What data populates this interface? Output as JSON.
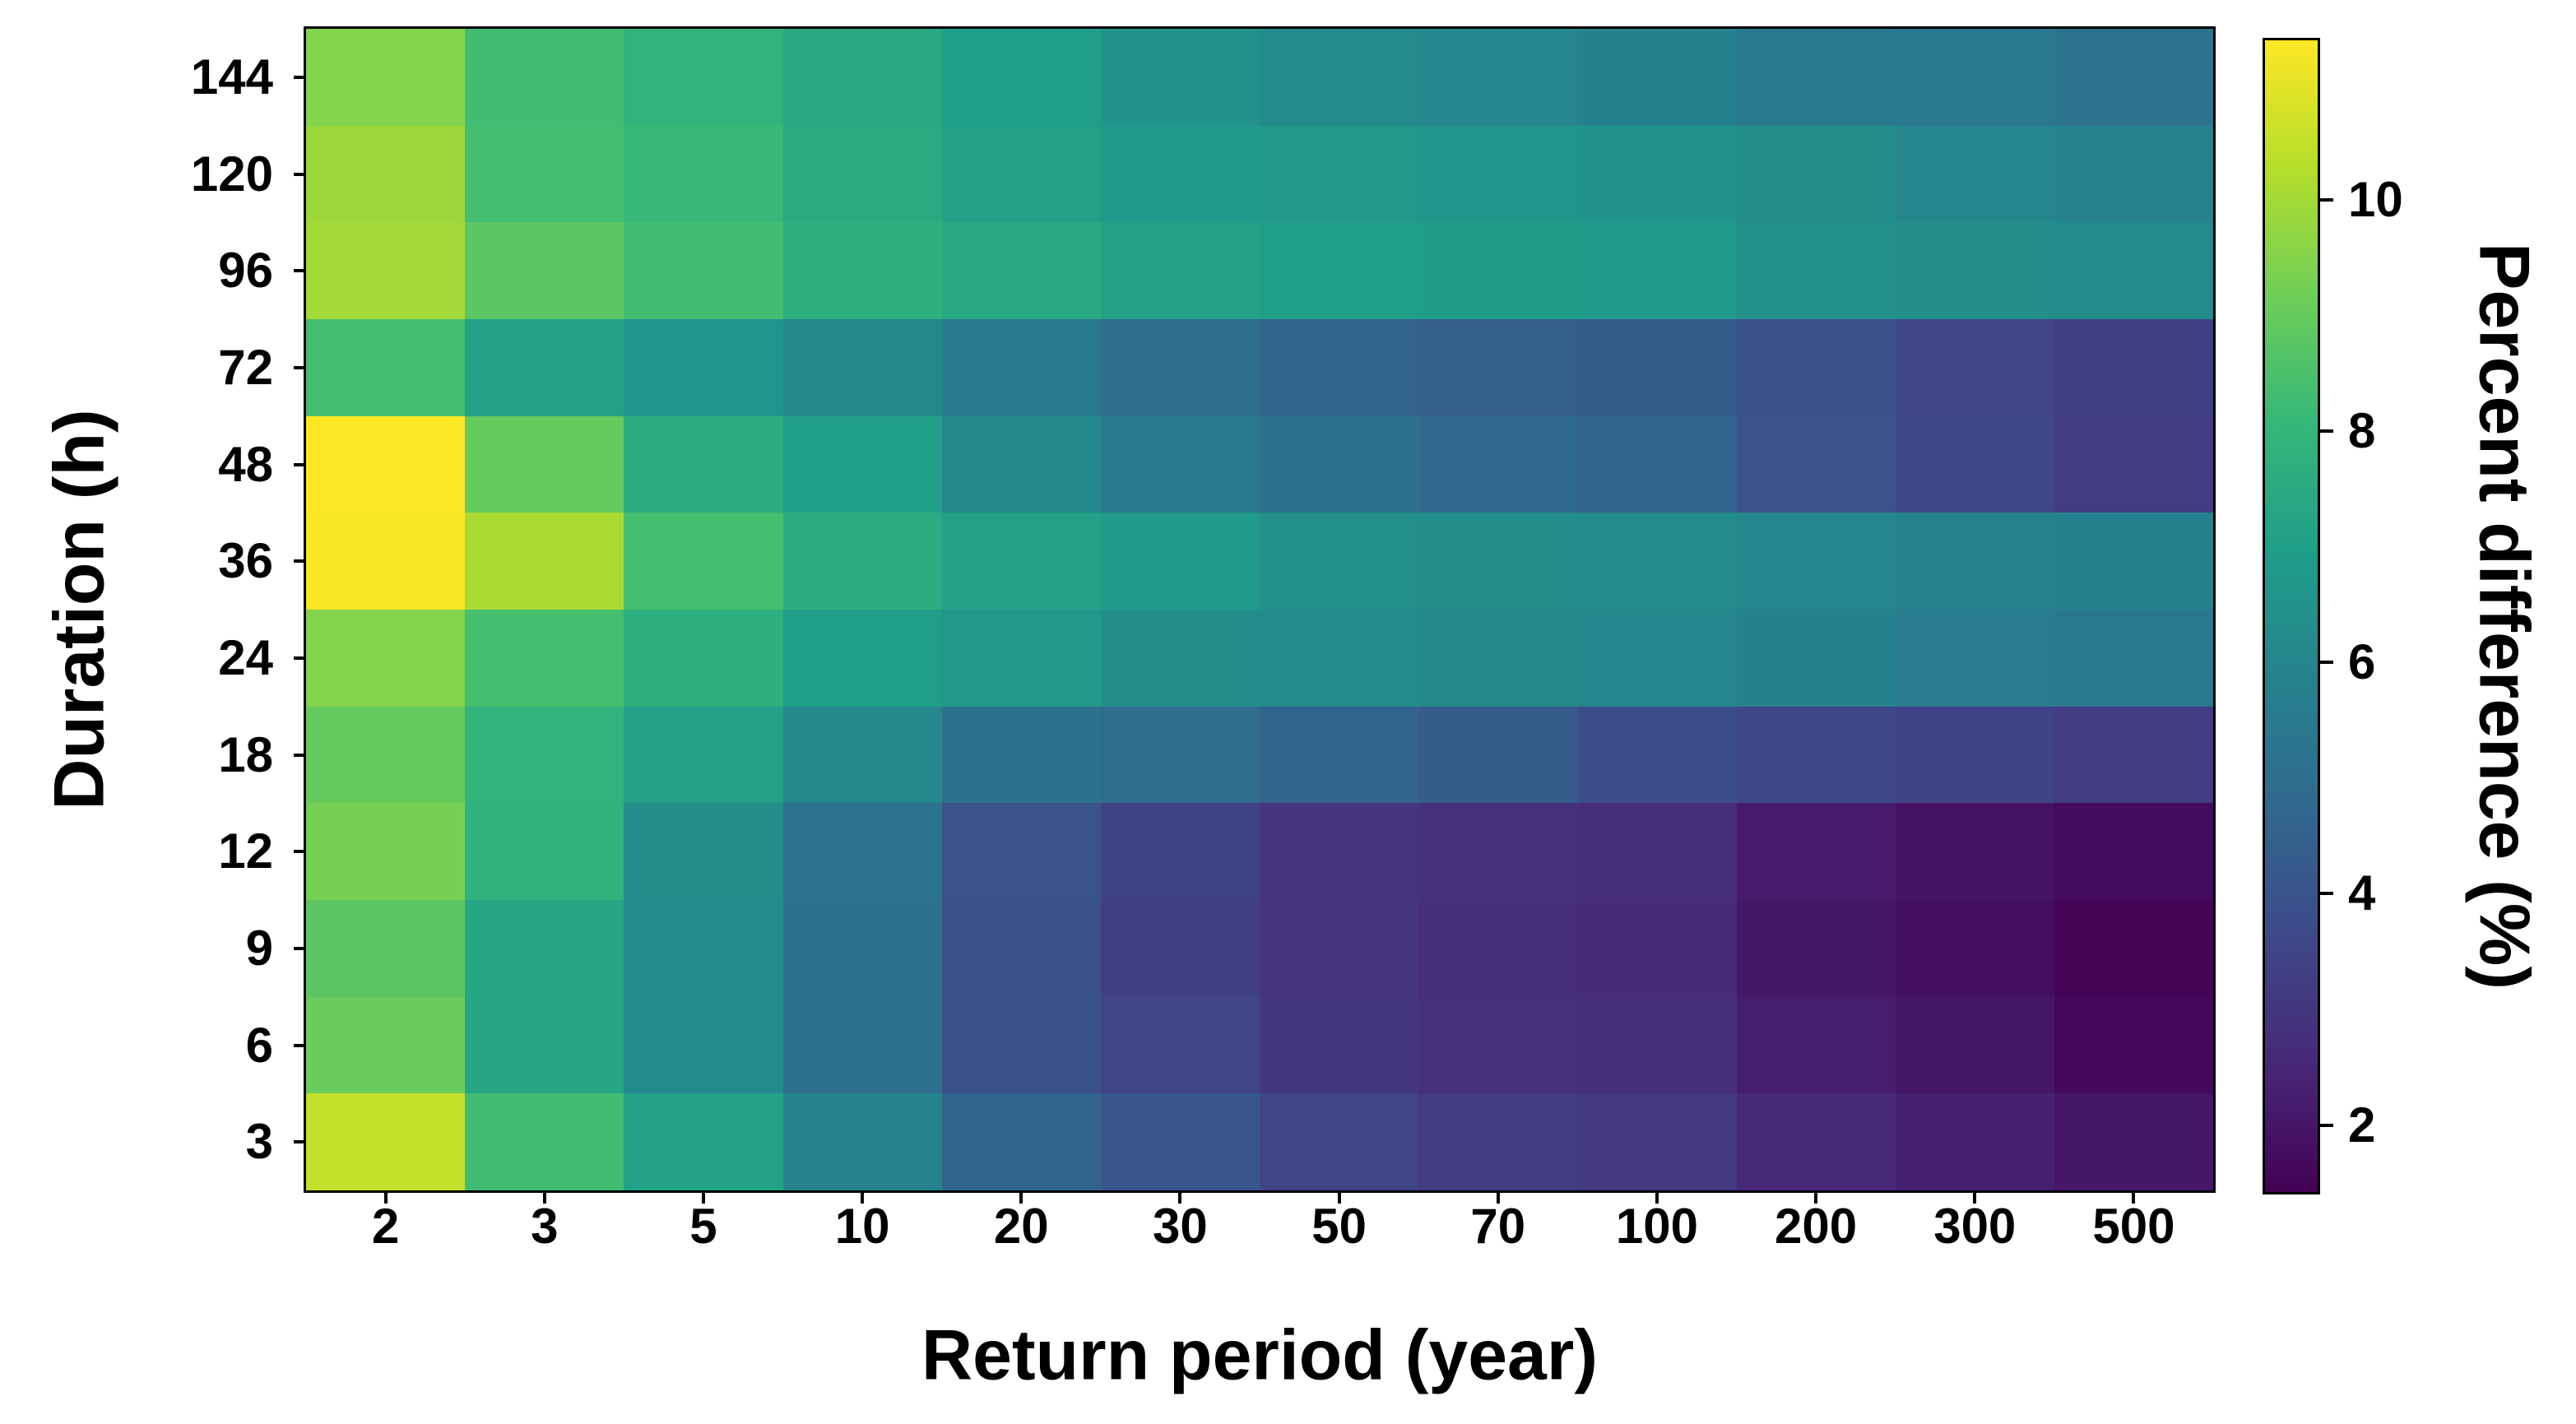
{
  "background_color": "#ffffff",
  "text_color": "#000000",
  "chart_data": {
    "type": "heatmap",
    "xlabel": "Return period (year)",
    "ylabel": "Duration (h)",
    "colorbar_label": "Percent difference (%)",
    "x_categories": [
      "2",
      "3",
      "5",
      "10",
      "20",
      "30",
      "50",
      "70",
      "100",
      "200",
      "300",
      "500"
    ],
    "y_categories": [
      "144",
      "120",
      "96",
      "72",
      "48",
      "36",
      "24",
      "18",
      "12",
      "9",
      "6",
      "3"
    ],
    "values": [
      [
        9.5,
        8.3,
        7.9,
        7.4,
        7.0,
        6.5,
        6.2,
        6.0,
        5.8,
        5.5,
        5.4,
        5.2
      ],
      [
        9.9,
        8.4,
        8.1,
        7.5,
        7.1,
        6.8,
        6.7,
        6.6,
        6.5,
        6.3,
        6.0,
        5.9
      ],
      [
        10.0,
        8.8,
        8.3,
        7.7,
        7.4,
        7.1,
        7.0,
        6.9,
        6.8,
        6.4,
        6.3,
        6.2
      ],
      [
        8.4,
        7.1,
        6.6,
        6.1,
        5.5,
        5.0,
        4.6,
        4.4,
        4.3,
        3.9,
        3.5,
        3.3
      ],
      [
        11.4,
        9.0,
        7.6,
        7.0,
        6.1,
        5.5,
        5.1,
        4.8,
        4.6,
        4.0,
        3.6,
        3.2
      ],
      [
        11.3,
        10.1,
        8.4,
        7.6,
        7.1,
        6.8,
        6.4,
        6.3,
        6.2,
        6.0,
        5.9,
        5.8
      ],
      [
        9.5,
        8.4,
        7.7,
        7.0,
        6.7,
        6.3,
        6.2,
        6.1,
        6.0,
        5.8,
        5.6,
        5.4
      ],
      [
        9.0,
        7.9,
        7.1,
        6.1,
        5.1,
        4.9,
        4.6,
        4.3,
        3.8,
        3.6,
        3.4,
        3.2
      ],
      [
        9.3,
        7.8,
        6.3,
        5.2,
        4.0,
        3.4,
        2.9,
        2.8,
        2.7,
        2.1,
        1.9,
        1.7
      ],
      [
        8.8,
        7.3,
        6.2,
        5.1,
        3.9,
        3.3,
        2.9,
        2.7,
        2.6,
        2.0,
        1.8,
        1.5
      ],
      [
        9.1,
        7.3,
        6.2,
        5.1,
        3.9,
        3.5,
        3.0,
        2.8,
        2.7,
        2.2,
        2.0,
        1.6
      ],
      [
        10.5,
        8.3,
        7.1,
        5.9,
        4.6,
        4.1,
        3.5,
        3.2,
        3.1,
        2.5,
        2.3,
        2.0
      ]
    ],
    "vmin": 1.4,
    "vmax": 11.4,
    "colorbar_ticks": [
      10,
      8,
      6,
      4,
      2
    ],
    "colormap": "viridis",
    "colormap_stops": [
      "#440154",
      "#482878",
      "#3e4989",
      "#31688e",
      "#26828e",
      "#1f9e89",
      "#35b779",
      "#6ece58",
      "#b5de2b",
      "#fde725"
    ],
    "grid": false,
    "legend": false
  }
}
